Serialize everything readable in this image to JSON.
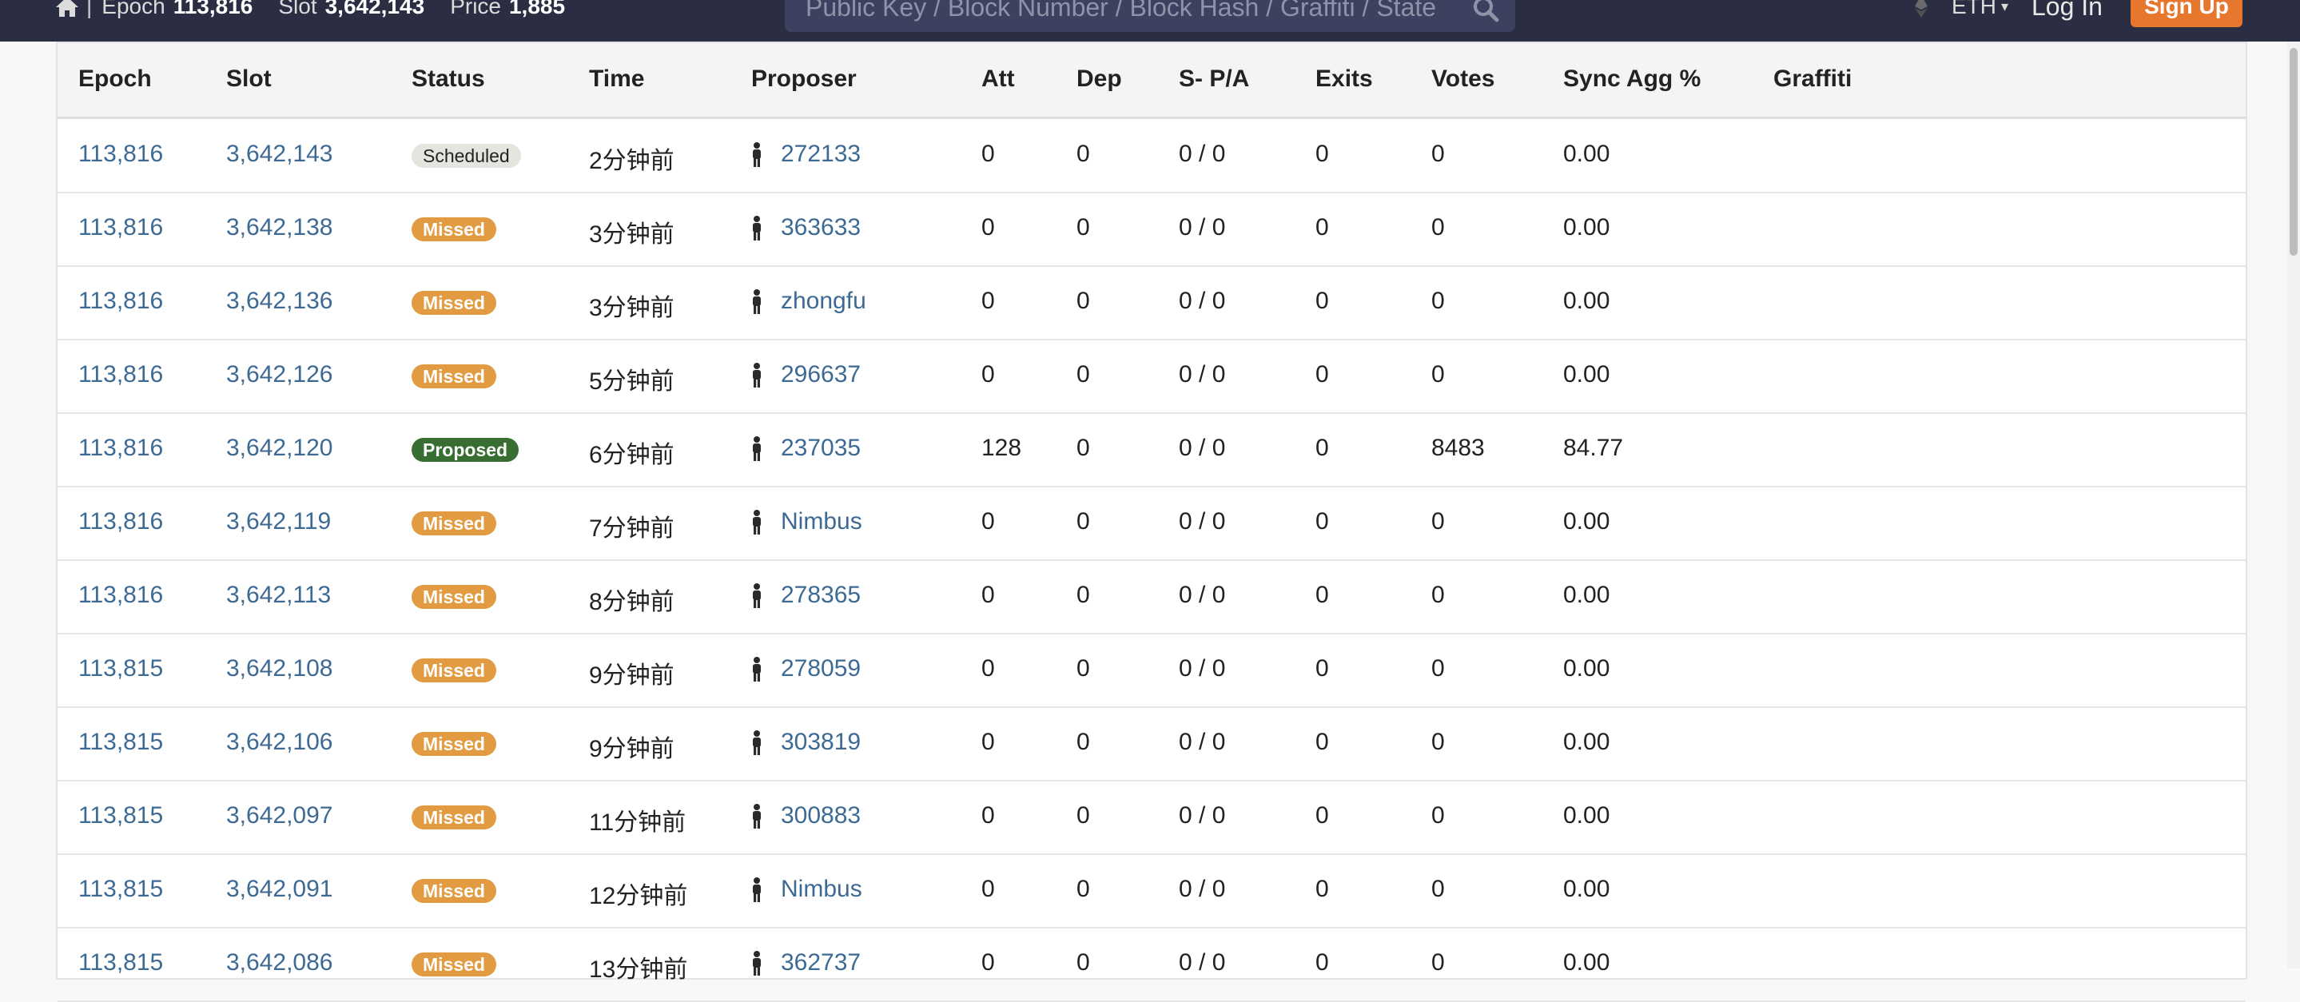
{
  "header": {
    "epoch_label": "Epoch",
    "epoch_value": "113,816",
    "slot_label": "Slot",
    "slot_value": "3,642,143",
    "price_label": "Price",
    "price_value": "1,885",
    "search_placeholder": "Public Key / Block Number / Block Hash / Graffiti / State",
    "currency_label": "ETH",
    "login_label": "Log In",
    "signup_label": "Sign Up",
    "signup_color": "#e8772e"
  },
  "table": {
    "columns": [
      "Epoch",
      "Slot",
      "Status",
      "Time",
      "Proposer",
      "Att",
      "Dep",
      "S- P/A",
      "Exits",
      "Votes",
      "Sync Agg %",
      "Graffiti"
    ],
    "rows": [
      {
        "epoch": "113,816",
        "slot": "3,642,143",
        "status": "Scheduled",
        "status_type": "scheduled",
        "time": "2分钟前",
        "proposer": "272133",
        "att": "0",
        "dep": "0",
        "spa": "0 / 0",
        "exits": "0",
        "votes": "0",
        "sync": "0.00",
        "graffiti": ""
      },
      {
        "epoch": "113,816",
        "slot": "3,642,138",
        "status": "Missed",
        "status_type": "missed",
        "time": "3分钟前",
        "proposer": "363633",
        "att": "0",
        "dep": "0",
        "spa": "0 / 0",
        "exits": "0",
        "votes": "0",
        "sync": "0.00",
        "graffiti": ""
      },
      {
        "epoch": "113,816",
        "slot": "3,642,136",
        "status": "Missed",
        "status_type": "missed",
        "time": "3分钟前",
        "proposer": "zhongfu",
        "att": "0",
        "dep": "0",
        "spa": "0 / 0",
        "exits": "0",
        "votes": "0",
        "sync": "0.00",
        "graffiti": ""
      },
      {
        "epoch": "113,816",
        "slot": "3,642,126",
        "status": "Missed",
        "status_type": "missed",
        "time": "5分钟前",
        "proposer": "296637",
        "att": "0",
        "dep": "0",
        "spa": "0 / 0",
        "exits": "0",
        "votes": "0",
        "sync": "0.00",
        "graffiti": ""
      },
      {
        "epoch": "113,816",
        "slot": "3,642,120",
        "status": "Proposed",
        "status_type": "proposed",
        "time": "6分钟前",
        "proposer": "237035",
        "att": "128",
        "dep": "0",
        "spa": "0 / 0",
        "exits": "0",
        "votes": "8483",
        "sync": "84.77",
        "graffiti": ""
      },
      {
        "epoch": "113,816",
        "slot": "3,642,119",
        "status": "Missed",
        "status_type": "missed",
        "time": "7分钟前",
        "proposer": "Nimbus",
        "att": "0",
        "dep": "0",
        "spa": "0 / 0",
        "exits": "0",
        "votes": "0",
        "sync": "0.00",
        "graffiti": ""
      },
      {
        "epoch": "113,816",
        "slot": "3,642,113",
        "status": "Missed",
        "status_type": "missed",
        "time": "8分钟前",
        "proposer": "278365",
        "att": "0",
        "dep": "0",
        "spa": "0 / 0",
        "exits": "0",
        "votes": "0",
        "sync": "0.00",
        "graffiti": ""
      },
      {
        "epoch": "113,815",
        "slot": "3,642,108",
        "status": "Missed",
        "status_type": "missed",
        "time": "9分钟前",
        "proposer": "278059",
        "att": "0",
        "dep": "0",
        "spa": "0 / 0",
        "exits": "0",
        "votes": "0",
        "sync": "0.00",
        "graffiti": ""
      },
      {
        "epoch": "113,815",
        "slot": "3,642,106",
        "status": "Missed",
        "status_type": "missed",
        "time": "9分钟前",
        "proposer": "303819",
        "att": "0",
        "dep": "0",
        "spa": "0 / 0",
        "exits": "0",
        "votes": "0",
        "sync": "0.00",
        "graffiti": ""
      },
      {
        "epoch": "113,815",
        "slot": "3,642,097",
        "status": "Missed",
        "status_type": "missed",
        "time": "11分钟前",
        "proposer": "300883",
        "att": "0",
        "dep": "0",
        "spa": "0 / 0",
        "exits": "0",
        "votes": "0",
        "sync": "0.00",
        "graffiti": ""
      },
      {
        "epoch": "113,815",
        "slot": "3,642,091",
        "status": "Missed",
        "status_type": "missed",
        "time": "12分钟前",
        "proposer": "Nimbus",
        "att": "0",
        "dep": "0",
        "spa": "0 / 0",
        "exits": "0",
        "votes": "0",
        "sync": "0.00",
        "graffiti": ""
      },
      {
        "epoch": "113,815",
        "slot": "3,642,086",
        "status": "Missed",
        "status_type": "missed",
        "time": "13分钟前",
        "proposer": "362737",
        "att": "0",
        "dep": "0",
        "spa": "0 / 0",
        "exits": "0",
        "votes": "0",
        "sync": "0.00",
        "graffiti": ""
      }
    ]
  },
  "colors": {
    "topbar_bg": "#2b2d42",
    "link": "#3d6a94",
    "missed": "#e39b41",
    "proposed": "#386e31",
    "scheduled": "#e6e4de"
  }
}
